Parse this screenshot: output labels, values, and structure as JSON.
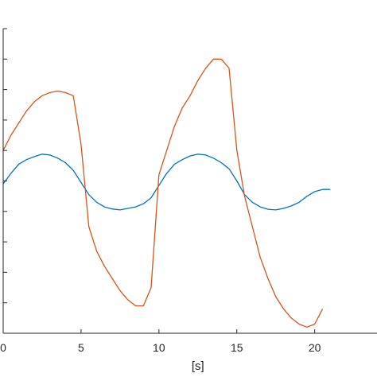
{
  "chart_data": {
    "type": "line",
    "title": "",
    "xlabel": "[s]",
    "ylabel": "",
    "xlim": [
      0,
      24
    ],
    "ylim": [
      -5,
      5
    ],
    "x_ticks": [
      0,
      5,
      10,
      15,
      20
    ],
    "x_tick_labels": [
      "0",
      "5",
      "10",
      "15",
      "20"
    ],
    "grid": false,
    "colors": {
      "series_1": "#0072BD",
      "series_2": "#D95319",
      "axis": "#262626"
    },
    "series": [
      {
        "color": "#0072BD",
        "x": [
          0,
          0.5,
          1,
          1.5,
          2,
          2.5,
          3,
          3.5,
          4,
          4.5,
          5,
          5.5,
          6,
          6.5,
          7,
          7.5,
          8,
          8.5,
          9,
          9.5,
          10,
          10.5,
          11,
          11.5,
          12,
          12.5,
          13,
          13.5,
          14,
          14.5,
          15,
          15.5,
          16,
          16.5,
          17,
          17.5,
          18,
          18.5,
          19,
          19.5,
          20,
          20.5,
          21
        ],
        "y": [
          -0.1,
          0.25,
          0.55,
          0.7,
          0.8,
          0.88,
          0.85,
          0.75,
          0.6,
          0.35,
          -0.05,
          -0.45,
          -0.7,
          -0.85,
          -0.92,
          -0.95,
          -0.9,
          -0.85,
          -0.75,
          -0.55,
          -0.15,
          0.25,
          0.55,
          0.7,
          0.82,
          0.88,
          0.85,
          0.75,
          0.6,
          0.4,
          0.0,
          -0.45,
          -0.7,
          -0.85,
          -0.93,
          -0.95,
          -0.9,
          -0.82,
          -0.7,
          -0.5,
          -0.35,
          -0.28,
          -0.28
        ]
      },
      {
        "color": "#D95319",
        "x": [
          0,
          0.5,
          1,
          1.5,
          2,
          2.5,
          3,
          3.5,
          4,
          4.5,
          5,
          5.5,
          6,
          6.5,
          7,
          7.5,
          8,
          8.5,
          9,
          9.5,
          10,
          10.5,
          11,
          11.5,
          12,
          12.5,
          13,
          13.5,
          14,
          14.5,
          15,
          15.5,
          16,
          16.5,
          17,
          17.5,
          18,
          18.5,
          19,
          19.5,
          20,
          20.5
        ],
        "y": [
          1.0,
          1.5,
          1.9,
          2.3,
          2.6,
          2.8,
          2.9,
          2.95,
          2.9,
          2.8,
          1.2,
          -1.5,
          -2.3,
          -2.8,
          -3.2,
          -3.6,
          -3.9,
          -4.1,
          -4.1,
          -3.5,
          0.2,
          1.0,
          1.8,
          2.4,
          2.8,
          3.3,
          3.7,
          4.0,
          4.0,
          3.7,
          1.0,
          -0.5,
          -1.5,
          -2.5,
          -3.2,
          -3.8,
          -4.2,
          -4.5,
          -4.7,
          -4.8,
          -4.7,
          -4.2
        ]
      }
    ]
  }
}
